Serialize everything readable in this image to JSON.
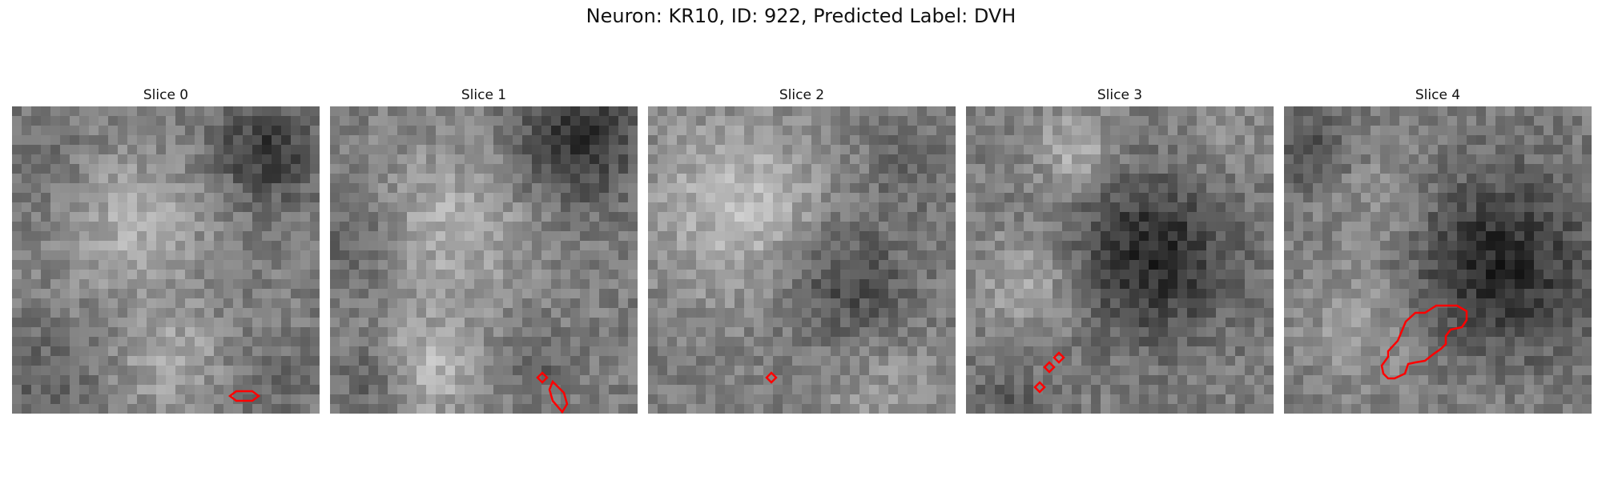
{
  "figure": {
    "title": "Neuron: KR10, ID: 922, Predicted Label: DVH"
  },
  "panels": [
    {
      "title": "Slice 0"
    },
    {
      "title": "Slice 1"
    },
    {
      "title": "Slice 2"
    },
    {
      "title": "Slice 3"
    },
    {
      "title": "Slice 4"
    }
  ],
  "colors": {
    "contour": "#ff0000",
    "background": "#ffffff"
  }
}
